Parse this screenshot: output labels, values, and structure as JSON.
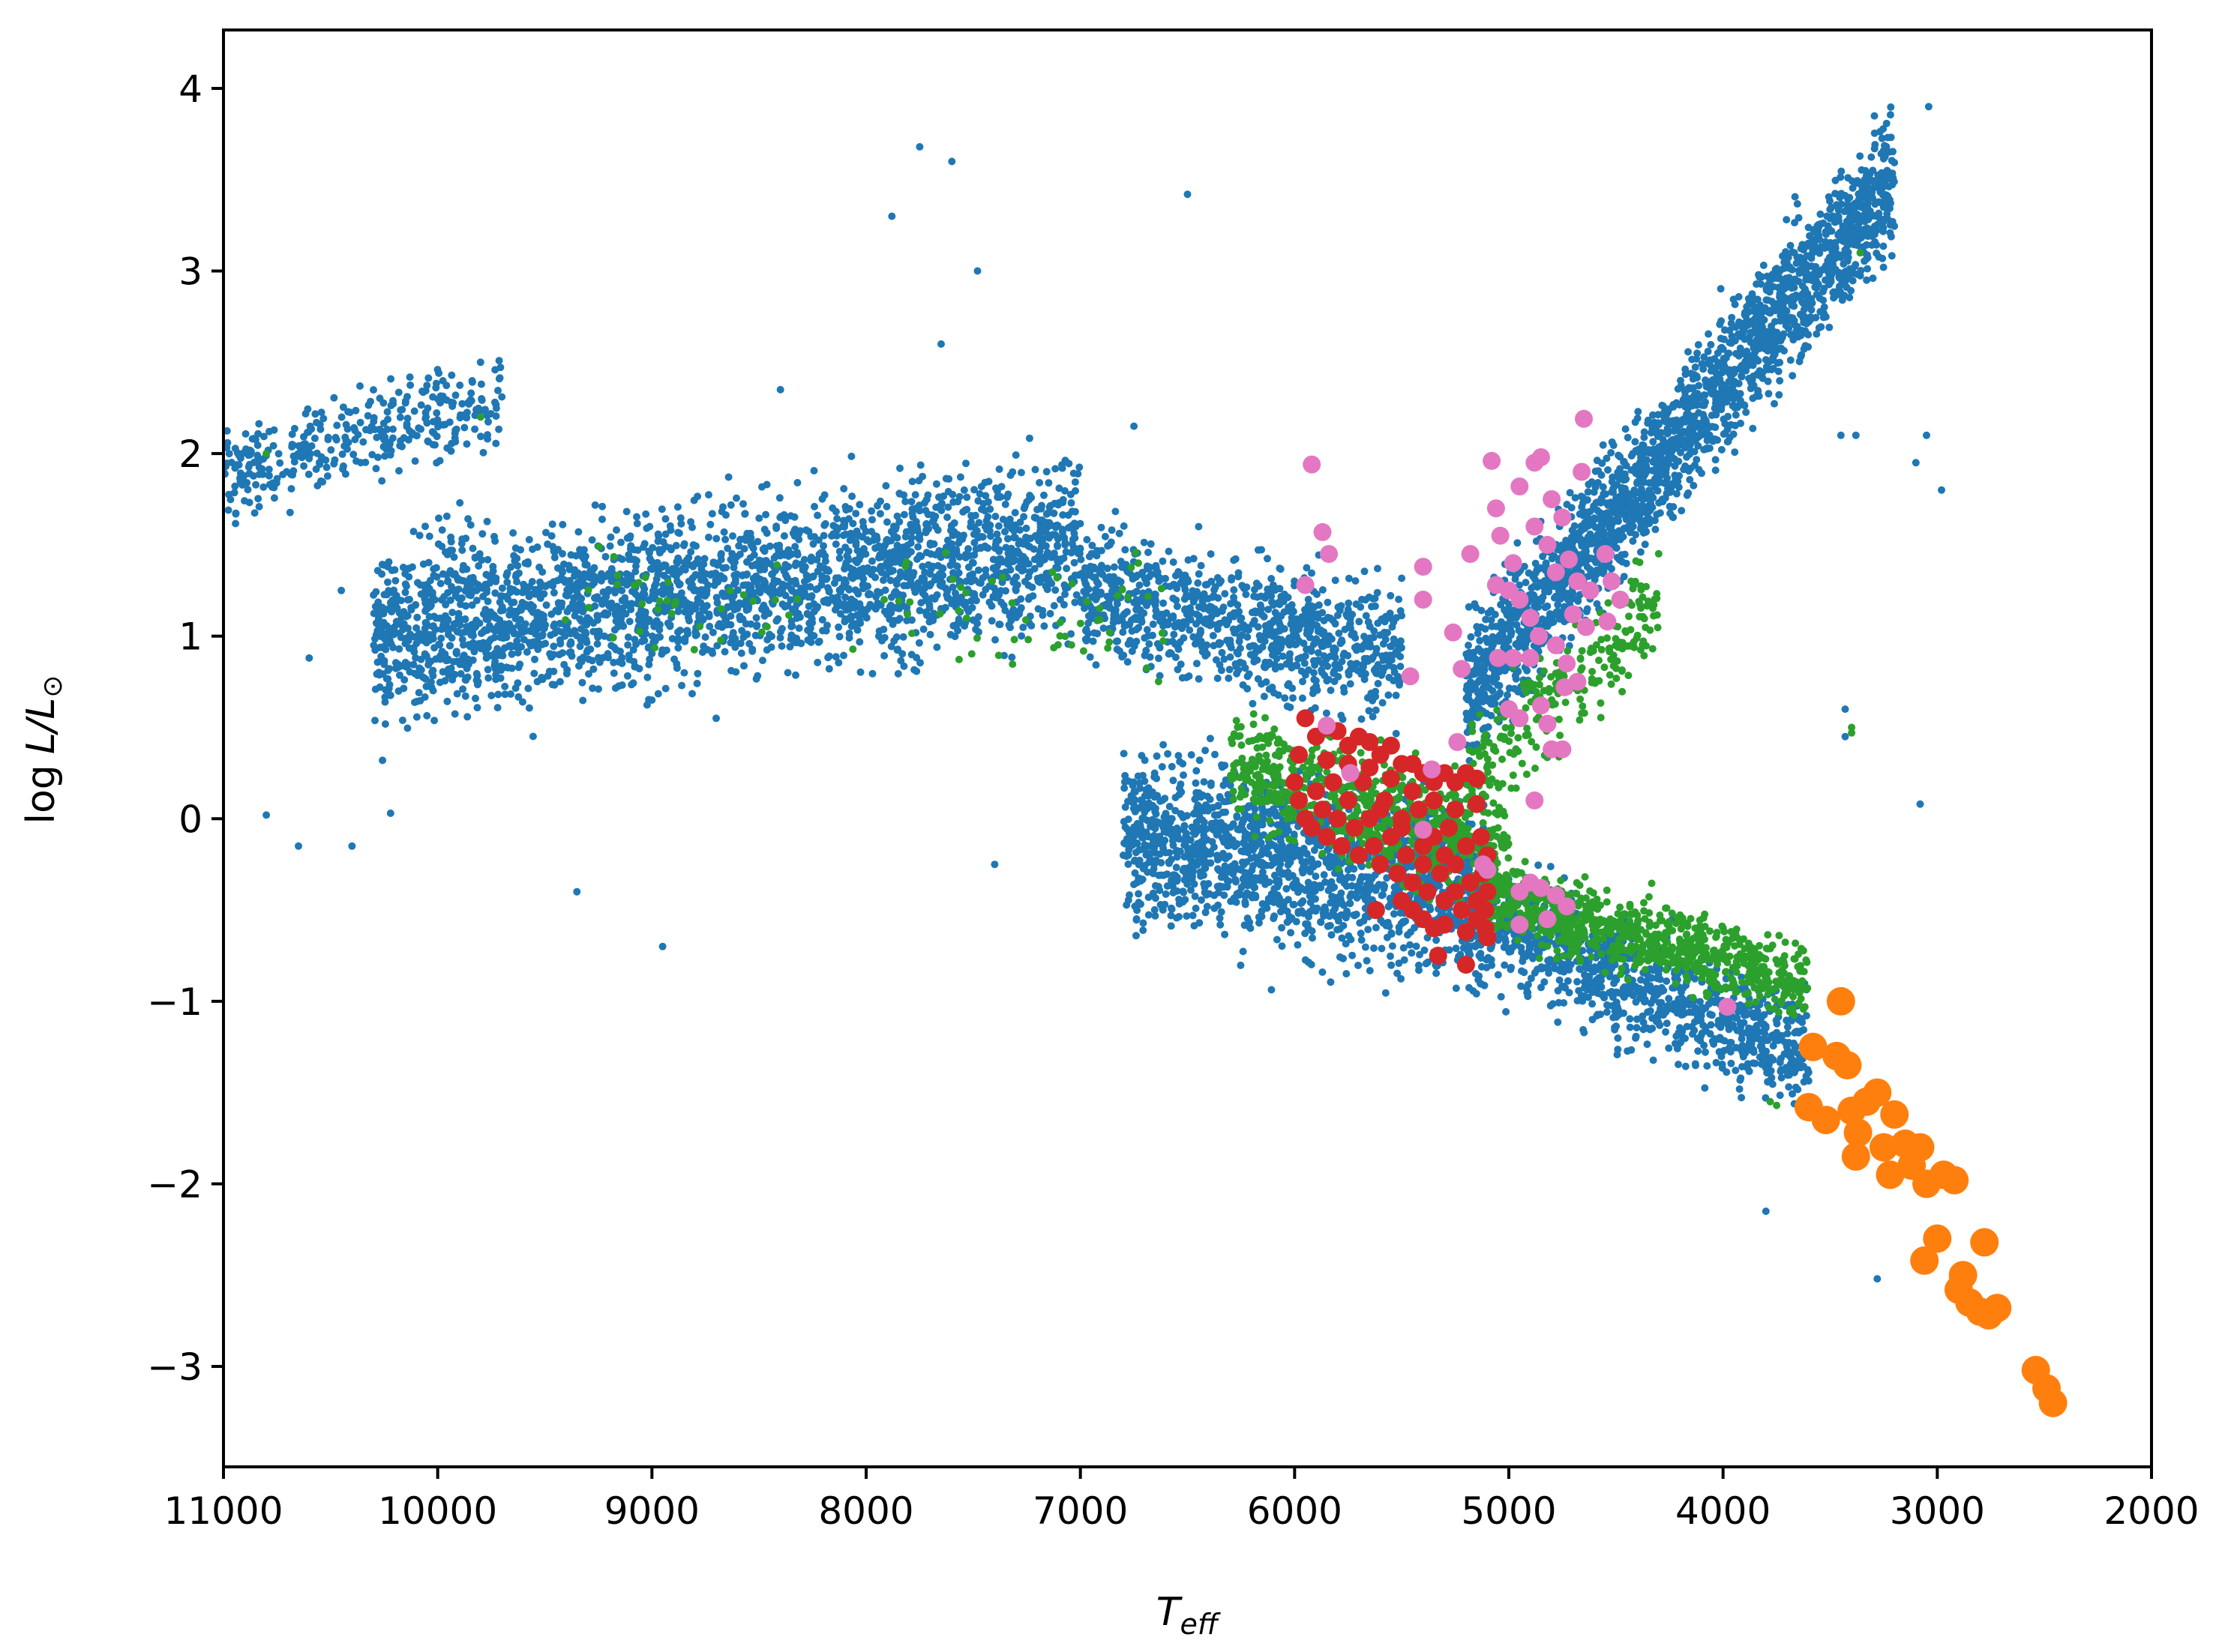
{
  "chart_data": {
    "type": "scatter",
    "title": "",
    "xlabel": "T_eff",
    "xlabel_parts": {
      "base": "T",
      "sub": "eff"
    },
    "ylabel": "log L/L⊙",
    "ylabel_parts": {
      "func": "log",
      "var": "L/L",
      "sub": "⊙"
    },
    "x_inverted": true,
    "xlim": [
      11000,
      2000
    ],
    "ylim": [
      -3.55,
      4.32
    ],
    "x_ticks": [
      11000,
      10000,
      9000,
      8000,
      7000,
      6000,
      5000,
      4000,
      3000,
      2000
    ],
    "x_tick_labels": [
      "11000",
      "10000",
      "9000",
      "8000",
      "7000",
      "6000",
      "5000",
      "4000",
      "3000",
      "2000"
    ],
    "y_ticks": [
      4,
      3,
      2,
      1,
      0,
      -1,
      -2,
      -3
    ],
    "y_tick_labels": [
      "4",
      "3",
      "2",
      "1",
      "0",
      "−1",
      "−2",
      "−3"
    ],
    "grid": false,
    "legend": "none",
    "series": [
      {
        "color": "#1f77b4",
        "marker_size": "small",
        "representative_points": true,
        "regions": [
          {
            "x_range": [
              10300,
              7000
            ],
            "y_center": [
              1.0,
              1.5
            ],
            "y_spread": 0.45,
            "count": 2600
          },
          {
            "x_range": [
              7000,
              5500
            ],
            "y_center": [
              1.25,
              0.9
            ],
            "y_spread": 0.35,
            "count": 900
          },
          {
            "x_range": [
              6800,
              5100
            ],
            "y_center": [
              -0.1,
              -0.4
            ],
            "y_spread": 0.45,
            "count": 1600
          },
          {
            "x_range": [
              5200,
              3600
            ],
            "y_center": [
              -0.5,
              -1.3
            ],
            "y_spread": 0.3,
            "count": 1000
          },
          {
            "x_range": [
              5200,
              3200
            ],
            "y_center": [
              0.7,
              3.5
            ],
            "y_spread": 0.35,
            "count": 2200
          },
          {
            "x_range": [
              11000,
              9700
            ],
            "y_center": [
              1.9,
              2.3
            ],
            "y_spread": 0.25,
            "count": 350
          }
        ],
        "outliers": [
          [
            7750,
            3.68
          ],
          [
            7600,
            3.6
          ],
          [
            7880,
            3.3
          ],
          [
            6500,
            3.42
          ],
          [
            7480,
            3.0
          ],
          [
            7650,
            2.6
          ],
          [
            8400,
            2.35
          ],
          [
            6750,
            2.15
          ],
          [
            9800,
            2.5
          ],
          [
            10800,
            0.02
          ],
          [
            10650,
            -0.15
          ],
          [
            10400,
            -0.15
          ],
          [
            10220,
            0.03
          ],
          [
            9350,
            -0.4
          ],
          [
            8950,
            -0.7
          ],
          [
            7400,
            -0.25
          ],
          [
            3800,
            -2.15
          ],
          [
            3280,
            -2.52
          ],
          [
            3430,
            0.6
          ],
          [
            3430,
            0.45
          ],
          [
            3080,
            0.08
          ],
          [
            2980,
            1.8
          ],
          [
            3050,
            2.1
          ],
          [
            3100,
            1.95
          ],
          [
            3380,
            2.1
          ],
          [
            3450,
            2.1
          ],
          [
            3380,
            3.18
          ],
          [
            3420,
            3.25
          ],
          [
            3330,
            2.95
          ],
          [
            3040,
            3.9
          ],
          [
            10600,
            0.88
          ],
          [
            10450,
            1.25
          ],
          [
            9000,
            0.65
          ],
          [
            8700,
            0.55
          ]
        ]
      },
      {
        "color": "#2ca02c",
        "marker_size": "small",
        "representative_points": true,
        "regions": [
          {
            "x_range": [
              6300,
              5000
            ],
            "y_center": [
              0.3,
              -0.2
            ],
            "y_spread": 0.3,
            "count": 700
          },
          {
            "x_range": [
              5100,
              3600
            ],
            "y_center": [
              -0.4,
              -0.9
            ],
            "y_spread": 0.2,
            "count": 800
          },
          {
            "x_range": [
              5200,
              4300
            ],
            "y_center": [
              0.2,
              1.2
            ],
            "y_spread": 0.3,
            "count": 250
          },
          {
            "x_range": [
              9500,
              6500
            ],
            "y_center": [
              1.2,
              1.1
            ],
            "y_spread": 0.3,
            "count": 90
          }
        ],
        "outliers": [
          [
            10800,
            2.0
          ],
          [
            9800,
            2.2
          ],
          [
            3400,
            0.47
          ],
          [
            3400,
            0.5
          ],
          [
            3360,
            3.1
          ],
          [
            3750,
            -1.57
          ],
          [
            3780,
            -1.55
          ]
        ]
      },
      {
        "color": "#d62728",
        "marker_size": "medium",
        "representative_points": true,
        "points": [
          [
            5950,
            0.55
          ],
          [
            5900,
            0.45
          ],
          [
            5850,
            0.5
          ],
          [
            5800,
            0.48
          ],
          [
            5750,
            0.4
          ],
          [
            5700,
            0.45
          ],
          [
            5650,
            0.42
          ],
          [
            5600,
            0.35
          ],
          [
            5550,
            0.4
          ],
          [
            5500,
            0.3
          ],
          [
            5450,
            0.3
          ],
          [
            5400,
            0.25
          ],
          [
            5350,
            0.2
          ],
          [
            5300,
            0.25
          ],
          [
            5250,
            0.2
          ],
          [
            5200,
            0.25
          ],
          [
            5150,
            0.22
          ],
          [
            6000,
            0.2
          ],
          [
            5980,
            0.1
          ],
          [
            5950,
            0.0
          ],
          [
            5920,
            -0.05
          ],
          [
            5900,
            0.15
          ],
          [
            5870,
            0.05
          ],
          [
            5850,
            -0.1
          ],
          [
            5820,
            0.2
          ],
          [
            5800,
            0.0
          ],
          [
            5780,
            -0.15
          ],
          [
            5750,
            0.1
          ],
          [
            5720,
            -0.05
          ],
          [
            5700,
            -0.2
          ],
          [
            5680,
            0.2
          ],
          [
            5650,
            0.0
          ],
          [
            5630,
            -0.15
          ],
          [
            5600,
            -0.25
          ],
          [
            5580,
            0.1
          ],
          [
            5550,
            -0.1
          ],
          [
            5520,
            -0.3
          ],
          [
            5500,
            0.0
          ],
          [
            5480,
            -0.2
          ],
          [
            5450,
            -0.35
          ],
          [
            5420,
            0.05
          ],
          [
            5400,
            -0.15
          ],
          [
            5380,
            -0.4
          ],
          [
            5350,
            -0.1
          ],
          [
            5320,
            -0.3
          ],
          [
            5300,
            -0.45
          ],
          [
            5280,
            -0.05
          ],
          [
            5250,
            -0.25
          ],
          [
            5220,
            -0.5
          ],
          [
            5200,
            -0.15
          ],
          [
            5180,
            -0.35
          ],
          [
            5150,
            -0.55
          ],
          [
            5130,
            -0.1
          ],
          [
            5120,
            -0.3
          ],
          [
            5110,
            -0.5
          ],
          [
            5100,
            -0.2
          ],
          [
            5100,
            -0.4
          ],
          [
            5110,
            -0.6
          ],
          [
            5200,
            -0.62
          ],
          [
            5300,
            -0.58
          ],
          [
            5400,
            -0.55
          ],
          [
            5500,
            -0.45
          ],
          [
            5620,
            -0.5
          ],
          [
            5330,
            -0.75
          ],
          [
            5200,
            -0.8
          ],
          [
            5100,
            -0.65
          ],
          [
            5150,
            0.08
          ],
          [
            5250,
            0.05
          ],
          [
            5350,
            0.1
          ],
          [
            5450,
            0.15
          ],
          [
            5550,
            0.22
          ],
          [
            5650,
            0.28
          ],
          [
            5750,
            0.3
          ],
          [
            5850,
            0.32
          ],
          [
            5980,
            0.35
          ],
          [
            5600,
            0.05
          ],
          [
            5500,
            -0.05
          ],
          [
            5400,
            -0.25
          ],
          [
            5300,
            -0.2
          ],
          [
            5250,
            -0.4
          ],
          [
            5150,
            -0.45
          ],
          [
            5450,
            -0.5
          ],
          [
            5350,
            -0.6
          ]
        ]
      },
      {
        "color": "#e377c2",
        "marker_size": "medium",
        "representative_points": true,
        "points": [
          [
            5920,
            1.94
          ],
          [
            5870,
            1.57
          ],
          [
            5840,
            1.45
          ],
          [
            5950,
            1.28
          ],
          [
            5850,
            0.51
          ],
          [
            5740,
            0.25
          ],
          [
            5400,
            1.38
          ],
          [
            5400,
            1.2
          ],
          [
            5460,
            0.78
          ],
          [
            5400,
            -0.06
          ],
          [
            5360,
            0.27
          ],
          [
            5260,
            1.02
          ],
          [
            5220,
            0.82
          ],
          [
            5240,
            0.42
          ],
          [
            5180,
            1.45
          ],
          [
            5080,
            1.96
          ],
          [
            5060,
            1.7
          ],
          [
            4950,
            1.82
          ],
          [
            4880,
            1.95
          ],
          [
            4850,
            1.98
          ],
          [
            4800,
            1.75
          ],
          [
            4650,
            2.19
          ],
          [
            4660,
            1.9
          ],
          [
            4750,
            1.65
          ],
          [
            5040,
            1.55
          ],
          [
            4980,
            1.4
          ],
          [
            4880,
            1.6
          ],
          [
            4820,
            1.5
          ],
          [
            4780,
            1.35
          ],
          [
            4720,
            1.42
          ],
          [
            4680,
            1.3
          ],
          [
            4620,
            1.25
          ],
          [
            4550,
            1.45
          ],
          [
            4520,
            1.3
          ],
          [
            4480,
            1.2
          ],
          [
            4540,
            1.08
          ],
          [
            5060,
            1.28
          ],
          [
            5000,
            1.25
          ],
          [
            4950,
            1.2
          ],
          [
            4900,
            1.1
          ],
          [
            4860,
            1.0
          ],
          [
            4700,
            1.12
          ],
          [
            4640,
            1.05
          ],
          [
            4780,
            0.95
          ],
          [
            4730,
            0.85
          ],
          [
            4680,
            0.75
          ],
          [
            4740,
            0.72
          ],
          [
            5050,
            0.88
          ],
          [
            4980,
            0.88
          ],
          [
            4900,
            0.88
          ],
          [
            5000,
            0.6
          ],
          [
            4950,
            0.55
          ],
          [
            4850,
            0.62
          ],
          [
            4820,
            0.52
          ],
          [
            4800,
            0.38
          ],
          [
            4750,
            0.38
          ],
          [
            4880,
            0.1
          ],
          [
            4900,
            -0.35
          ],
          [
            4950,
            -0.4
          ],
          [
            4850,
            -0.38
          ],
          [
            4780,
            -0.42
          ],
          [
            4730,
            -0.48
          ],
          [
            4820,
            -0.55
          ],
          [
            4950,
            -0.58
          ],
          [
            5120,
            -0.25
          ],
          [
            5100,
            -0.28
          ],
          [
            3980,
            -1.03
          ]
        ]
      },
      {
        "color": "#ff7f0e",
        "marker_size": "large",
        "representative_points": true,
        "points": [
          [
            3450,
            -1.0
          ],
          [
            3580,
            -1.25
          ],
          [
            3470,
            -1.3
          ],
          [
            3420,
            -1.35
          ],
          [
            3600,
            -1.58
          ],
          [
            3520,
            -1.65
          ],
          [
            3400,
            -1.6
          ],
          [
            3330,
            -1.55
          ],
          [
            3280,
            -1.5
          ],
          [
            3370,
            -1.72
          ],
          [
            3250,
            -1.8
          ],
          [
            3200,
            -1.62
          ],
          [
            3150,
            -1.78
          ],
          [
            3380,
            -1.85
          ],
          [
            3220,
            -1.95
          ],
          [
            3120,
            -1.9
          ],
          [
            3080,
            -1.8
          ],
          [
            3050,
            -2.0
          ],
          [
            2970,
            -1.95
          ],
          [
            2920,
            -1.98
          ],
          [
            3000,
            -2.3
          ],
          [
            3060,
            -2.42
          ],
          [
            2780,
            -2.32
          ],
          [
            2880,
            -2.5
          ],
          [
            2900,
            -2.58
          ],
          [
            2850,
            -2.65
          ],
          [
            2800,
            -2.7
          ],
          [
            2720,
            -2.68
          ],
          [
            2760,
            -2.72
          ],
          [
            2540,
            -3.02
          ],
          [
            2490,
            -3.12
          ],
          [
            2460,
            -3.2
          ]
        ]
      }
    ]
  }
}
